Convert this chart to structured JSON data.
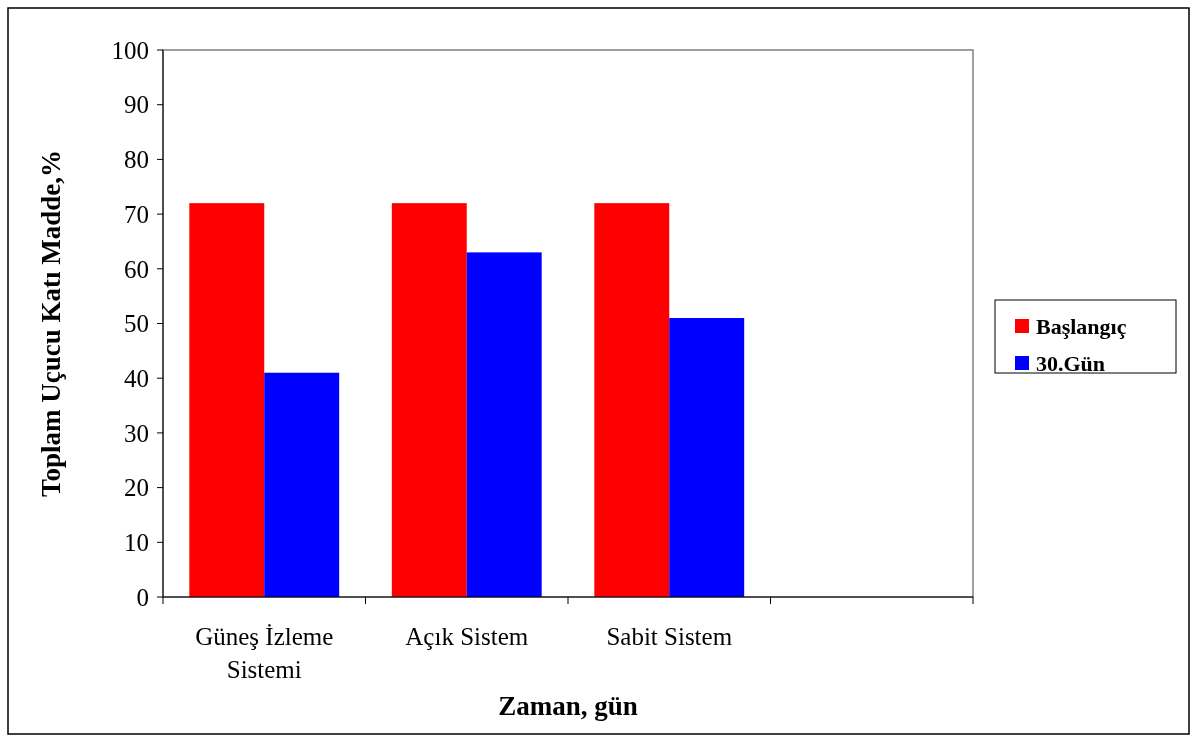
{
  "chart_data": {
    "type": "bar",
    "xlabel": "Zaman, gün",
    "ylabel": "Toplam Uçucu Katı Madde,%",
    "categories": [
      "Güneş İzleme Sistemi",
      "Açık Sistem",
      "Sabit Sistem",
      null
    ],
    "series": [
      {
        "name": "Başlangıç",
        "color": "#ff0000",
        "values": [
          72,
          72,
          72,
          null
        ]
      },
      {
        "name": "30.Gün",
        "color": "#0000ff",
        "values": [
          41,
          63,
          51,
          null
        ]
      }
    ],
    "ylim": [
      0,
      100
    ],
    "yticks": [
      0,
      10,
      20,
      30,
      40,
      50,
      60,
      70,
      80,
      90,
      100
    ],
    "grid": false,
    "legend": "right"
  }
}
